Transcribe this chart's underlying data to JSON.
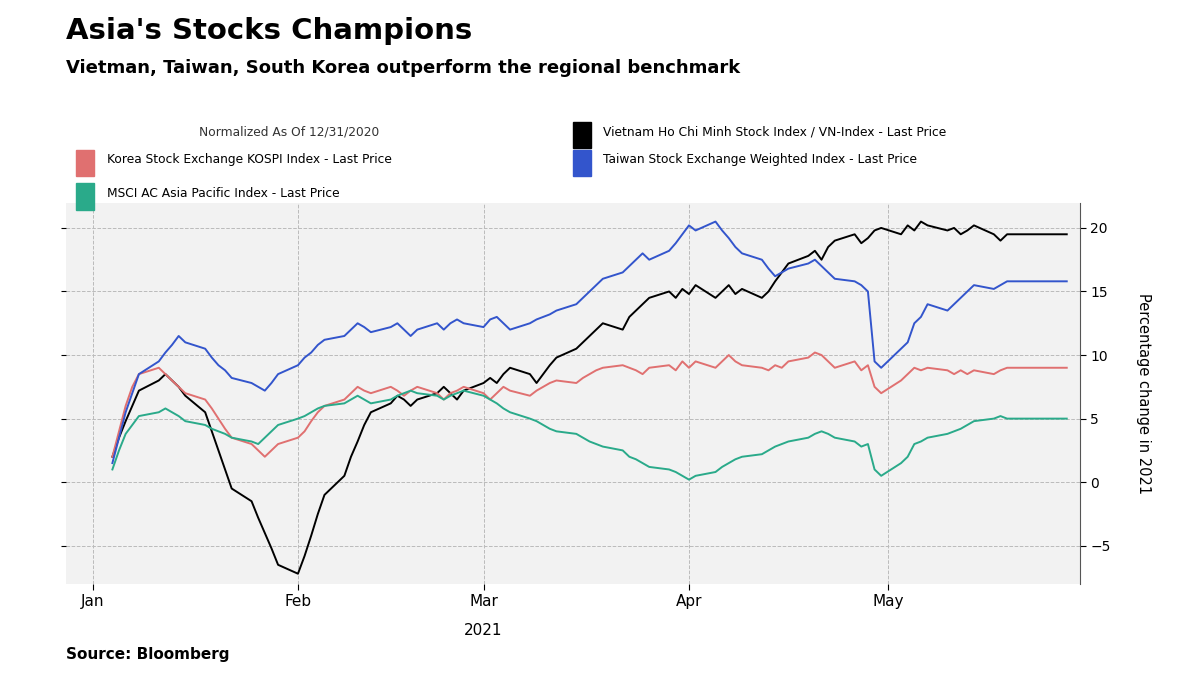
{
  "title": "Asia's Stocks Champions",
  "subtitle": "Vietman, Taiwan, South Korea outperform the regional benchmark",
  "legend_header": "Normalized As Of 12/31/2020",
  "legend_items": [
    {
      "label": "Vietnam Ho Chi Minh Stock Index / VN-Index - Last Price",
      "color": "#000000"
    },
    {
      "label": "Korea Stock Exchange KOSPI Index - Last Price",
      "color": "#E07070"
    },
    {
      "label": "Taiwan Stock Exchange Weighted Index - Last Price",
      "color": "#3355CC"
    },
    {
      "label": "MSCI AC Asia Pacific Index - Last Price",
      "color": "#2AAA8A"
    }
  ],
  "ylabel": "Percentage change in 2021",
  "source": "Source: Bloomberg",
  "background_color": "#FFFFFF",
  "plot_bg_color": "#F2F2F2",
  "legend_bg_color": "#E8E8E8",
  "ylim": [
    -8,
    22
  ],
  "yticks": [
    -5,
    0,
    5,
    10,
    15,
    20
  ],
  "vietnam": [
    2.0,
    3.5,
    4.8,
    6.0,
    7.2,
    8.0,
    8.5,
    8.0,
    7.5,
    6.8,
    5.5,
    4.0,
    2.5,
    1.0,
    -0.5,
    -1.5,
    -2.8,
    -4.0,
    -5.2,
    -6.5,
    -7.2,
    -5.8,
    -4.2,
    -2.5,
    -1.0,
    0.5,
    2.0,
    3.2,
    4.5,
    5.5,
    6.2,
    6.8,
    6.5,
    6.0,
    6.5,
    7.0,
    7.5,
    7.0,
    6.5,
    7.2,
    7.8,
    8.2,
    7.8,
    8.5,
    9.0,
    8.5,
    7.8,
    8.5,
    9.2,
    9.8,
    10.5,
    11.0,
    11.5,
    12.0,
    12.5,
    12.0,
    13.0,
    13.5,
    14.0,
    14.5,
    15.0,
    14.5,
    15.2,
    14.8,
    15.5,
    14.5,
    15.0,
    15.5,
    14.8,
    15.2,
    14.5,
    15.0,
    15.8,
    16.5,
    17.2,
    17.8,
    18.2,
    17.5,
    18.5,
    19.0,
    19.5,
    18.8,
    19.2,
    19.8,
    20.0,
    19.5,
    20.2,
    19.8,
    20.5,
    20.2,
    19.8,
    20.0,
    19.5,
    19.8,
    20.2,
    19.5,
    19.0,
    19.5
  ],
  "korea": [
    2.0,
    4.0,
    6.0,
    7.5,
    8.5,
    9.0,
    8.5,
    8.0,
    7.5,
    7.0,
    6.5,
    5.8,
    5.0,
    4.2,
    3.5,
    3.0,
    2.5,
    2.0,
    2.5,
    3.0,
    3.5,
    4.0,
    4.8,
    5.5,
    6.0,
    6.5,
    7.0,
    7.5,
    7.2,
    7.0,
    7.5,
    7.2,
    6.8,
    7.2,
    7.5,
    7.0,
    6.5,
    7.0,
    7.2,
    7.5,
    7.0,
    6.5,
    7.0,
    7.5,
    7.2,
    6.8,
    7.2,
    7.5,
    7.8,
    8.0,
    7.8,
    8.2,
    8.5,
    8.8,
    9.0,
    9.2,
    9.0,
    8.8,
    8.5,
    9.0,
    9.2,
    8.8,
    9.5,
    9.0,
    9.5,
    9.0,
    9.5,
    10.0,
    9.5,
    9.2,
    9.0,
    8.8,
    9.2,
    9.0,
    9.5,
    9.8,
    10.2,
    10.0,
    9.5,
    9.0,
    9.5,
    8.8,
    9.2,
    7.5,
    7.0,
    8.0,
    8.5,
    9.0,
    8.8,
    9.0,
    8.8,
    8.5,
    8.8,
    8.5,
    8.8,
    8.5,
    8.8,
    9.0
  ],
  "taiwan": [
    1.5,
    3.5,
    5.5,
    7.0,
    8.5,
    9.5,
    10.2,
    10.8,
    11.5,
    11.0,
    10.5,
    9.8,
    9.2,
    8.8,
    8.2,
    7.8,
    7.5,
    7.2,
    7.8,
    8.5,
    9.2,
    9.8,
    10.2,
    10.8,
    11.2,
    11.5,
    12.0,
    12.5,
    12.2,
    11.8,
    12.2,
    12.5,
    12.0,
    11.5,
    12.0,
    12.5,
    12.0,
    12.5,
    12.8,
    12.5,
    12.2,
    12.8,
    13.0,
    12.5,
    12.0,
    12.5,
    12.8,
    13.0,
    13.2,
    13.5,
    14.0,
    14.5,
    15.0,
    15.5,
    16.0,
    16.5,
    17.0,
    17.5,
    18.0,
    17.5,
    18.2,
    18.8,
    19.5,
    20.2,
    19.8,
    20.5,
    19.8,
    19.2,
    18.5,
    18.0,
    17.5,
    16.8,
    16.2,
    16.5,
    16.8,
    17.2,
    17.5,
    17.0,
    16.5,
    16.0,
    15.8,
    15.5,
    15.0,
    9.5,
    9.0,
    10.5,
    11.0,
    12.5,
    13.0,
    14.0,
    13.5,
    14.0,
    14.5,
    15.0,
    15.5,
    15.2,
    15.5,
    15.8
  ],
  "msci": [
    1.0,
    2.5,
    3.8,
    4.5,
    5.2,
    5.5,
    5.8,
    5.5,
    5.2,
    4.8,
    4.5,
    4.2,
    4.0,
    3.8,
    3.5,
    3.2,
    3.0,
    3.5,
    4.0,
    4.5,
    5.0,
    5.2,
    5.5,
    5.8,
    6.0,
    6.2,
    6.5,
    6.8,
    6.5,
    6.2,
    6.5,
    6.8,
    7.0,
    7.2,
    7.0,
    6.8,
    6.5,
    6.8,
    7.0,
    7.2,
    6.8,
    6.5,
    6.2,
    5.8,
    5.5,
    5.0,
    4.8,
    4.5,
    4.2,
    4.0,
    3.8,
    3.5,
    3.2,
    3.0,
    2.8,
    2.5,
    2.0,
    1.8,
    1.5,
    1.2,
    1.0,
    0.8,
    0.5,
    0.2,
    0.5,
    0.8,
    1.2,
    1.5,
    1.8,
    2.0,
    2.2,
    2.5,
    2.8,
    3.0,
    3.2,
    3.5,
    3.8,
    4.0,
    3.8,
    3.5,
    3.2,
    2.8,
    3.0,
    1.0,
    0.5,
    1.5,
    2.0,
    3.0,
    3.2,
    3.5,
    3.8,
    4.0,
    4.2,
    4.5,
    4.8,
    5.0,
    5.2,
    5.0
  ]
}
